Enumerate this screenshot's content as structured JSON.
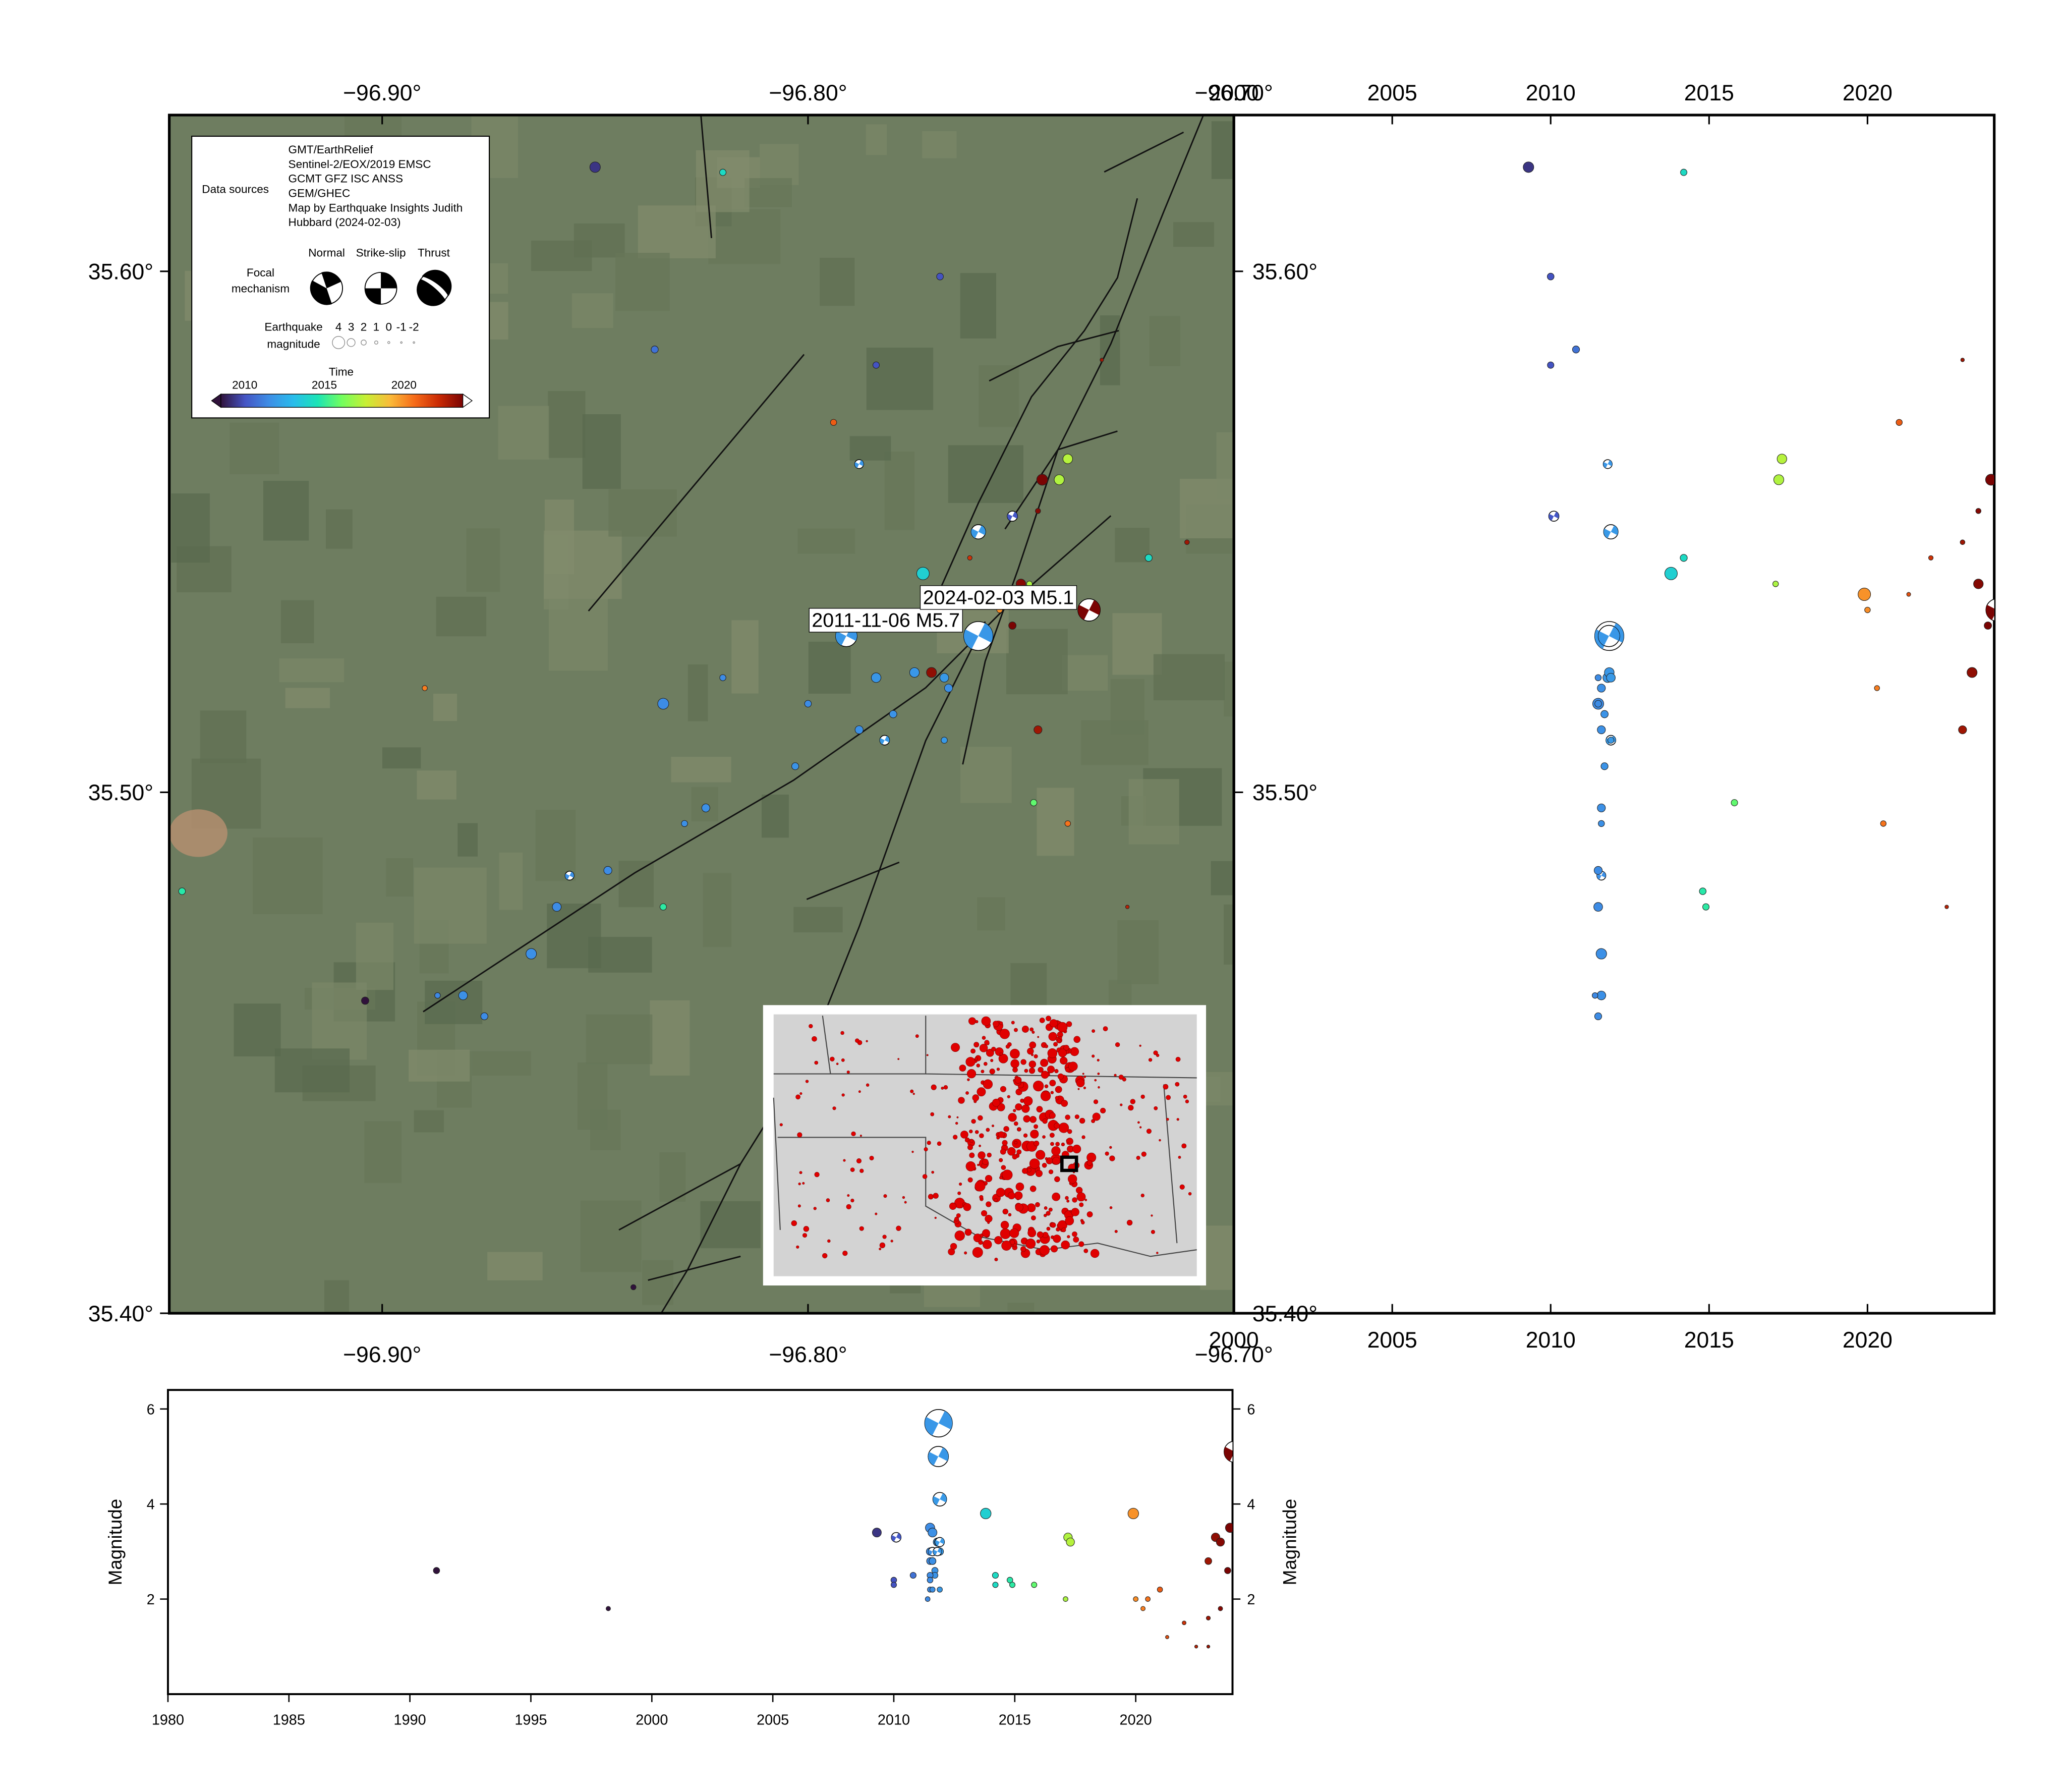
{
  "map": {
    "xlim": [
      -96.95,
      -96.7
    ],
    "ylim": [
      35.4,
      35.63
    ],
    "xticks": [
      {
        "value": -96.9,
        "label": "−96.90°"
      },
      {
        "value": -96.8,
        "label": "−96.80°"
      },
      {
        "value": -96.7,
        "label": "−96.70°"
      }
    ],
    "yticks": [
      {
        "value": 35.6,
        "label": "35.60°"
      },
      {
        "value": 35.5,
        "label": "35.50°"
      },
      {
        "value": 35.4,
        "label": "35.40°"
      }
    ]
  },
  "time_panel": {
    "xlim": [
      2000,
      2024
    ],
    "xticks": [
      2000,
      2005,
      2010,
      2015,
      2020
    ]
  },
  "magnitude_panel": {
    "xlim": [
      1980,
      2024
    ],
    "ylim": [
      0,
      6.4
    ],
    "xticks": [
      1980,
      1985,
      1990,
      1995,
      2000,
      2005,
      2010,
      2015,
      2020
    ],
    "yticks": [
      2,
      4,
      6
    ],
    "ylabel": "Magnitude"
  },
  "legend": {
    "data_sources_label": "Data sources",
    "sources": [
      "GMT/EarthRelief",
      "Sentinel-2/EOX/2019 EMSC",
      "GCMT GFZ ISC ANSS",
      "GEM/GHEC",
      "Map by Earthquake Insights Judith",
      "Hubbard (2024-02-03)"
    ],
    "focal_mechanism_label": [
      "Focal",
      "mechanism"
    ],
    "mechanisms": [
      "Normal",
      "Strike-slip",
      "Thrust"
    ],
    "magnitude_label": [
      "Earthquake",
      "magnitude"
    ],
    "magnitudes": [
      4,
      3,
      2,
      1,
      0,
      -1,
      -2
    ],
    "time_label": "Time",
    "time_ticks": [
      2010,
      2015,
      2020
    ]
  },
  "colormap": [
    "#30123b",
    "#4454c4",
    "#3d8ee6",
    "#28bceb",
    "#1ae4b6",
    "#72fe5e",
    "#c8ef34",
    "#faba39",
    "#f66b19",
    "#ca2a04",
    "#7a0403"
  ],
  "cpt_range": [
    2008.5,
    2023.7
  ],
  "events": {
    "lon": [
      -96.76,
      -96.791,
      -96.734,
      -96.76,
      -96.85,
      -96.773,
      -96.834,
      -96.865,
      -96.881,
      -96.859,
      -96.847,
      -96.824,
      -96.803,
      -96.784,
      -96.768,
      -96.775,
      -96.771,
      -96.746,
      -96.72,
      -96.739,
      -96.794,
      -96.784,
      -96.769,
      -96.836,
      -96.856,
      -96.782,
      -96.788,
      -96.752,
      -96.947,
      -96.834,
      -96.747,
      -96.739,
      -96.89,
      -96.711,
      -96.746,
      -96.748,
      -96.755,
      -96.767,
      -96.78,
      -96.788,
      -96.8,
      -96.82,
      -96.829,
      -96.876,
      -96.887,
      -96.768,
      -96.731,
      -96.725,
      -96.904,
      -96.841,
      -96.741,
      -96.82,
      -96.755,
      -96.745,
      -96.75,
      -96.762,
      -96.758,
      -96.752
    ],
    "lat": [
      35.53,
      35.53,
      35.535,
      35.55,
      35.62,
      35.542,
      35.517,
      35.469,
      35.461,
      35.478,
      35.485,
      35.497,
      35.505,
      35.522,
      35.522,
      35.523,
      35.523,
      35.512,
      35.545,
      35.564,
      35.571,
      35.582,
      35.599,
      35.585,
      35.484,
      35.51,
      35.563,
      35.553,
      35.481,
      35.478,
      35.498,
      35.494,
      35.52,
      35.548,
      35.554,
      35.54,
      35.535,
      35.52,
      35.515,
      35.512,
      35.517,
      35.522,
      35.494,
      35.457,
      35.461,
      35.51,
      35.583,
      35.478,
      35.46,
      35.405,
      35.56,
      35.619,
      35.538,
      35.56,
      35.54,
      35.545,
      35.538,
      35.532
    ],
    "time": [
      2011.85,
      2011.84,
      2024.09,
      2011.9,
      2009.3,
      2013.8,
      2011.5,
      2011.6,
      2011.6,
      2011.5,
      2011.5,
      2011.6,
      2011.7,
      2011.8,
      2011.9,
      2011.85,
      2023.3,
      2023.0,
      2014.2,
      2017.3,
      2021.0,
      2010.0,
      2010.0,
      2010.8,
      2011.6,
      2011.9,
      2011.8,
      2010.1,
      2014.8,
      2014.9,
      2015.8,
      2020.5,
      2020.3,
      2023.0,
      2023.5,
      2017.1,
      2020.0,
      2011.6,
      2011.7,
      2011.6,
      2011.5,
      2011.5,
      2011.6,
      2011.5,
      2011.4,
      2011.9,
      2023.0,
      2022.5,
      1991.1,
      1998.2,
      2017.2,
      2014.2,
      2019.9,
      2023.9,
      2023.5,
      2022.0,
      2021.3,
      2023.8
    ],
    "mag": [
      5.7,
      5.0,
      5.1,
      4.1,
      3.4,
      3.8,
      3.5,
      3.4,
      3.0,
      3.0,
      2.8,
      2.8,
      2.5,
      3.2,
      3.0,
      3.2,
      3.3,
      2.8,
      2.5,
      3.2,
      2.2,
      2.3,
      2.4,
      2.5,
      3.0,
      3.2,
      3.0,
      3.3,
      2.4,
      2.3,
      2.3,
      2.0,
      1.8,
      1.6,
      1.8,
      2.0,
      2.0,
      2.8,
      2.6,
      2.8,
      2.4,
      2.2,
      2.2,
      2.5,
      2.0,
      2.2,
      1.0,
      1.0,
      2.6,
      1.8,
      3.3,
      2.3,
      3.8,
      3.5,
      3.2,
      1.5,
      1.2,
      2.6
    ],
    "mechanism": [
      "strike-slip",
      "strike-slip",
      "strike-slip",
      "strike-slip",
      null,
      null,
      null,
      null,
      null,
      null,
      null,
      null,
      null,
      null,
      null,
      null,
      null,
      null,
      null,
      null,
      null,
      null,
      null,
      null,
      "strike-slip",
      "strike-slip",
      "strike-slip",
      "strike-slip",
      null,
      null,
      null,
      null,
      null,
      null,
      null,
      null,
      null,
      null,
      null,
      null,
      null,
      null,
      null,
      null,
      null,
      null,
      null,
      null,
      null,
      null,
      null,
      null,
      null,
      null,
      null,
      null,
      null,
      null
    ],
    "label": [
      "2011-11-06 M5.7",
      null,
      "2024-02-03 M5.1",
      null,
      null,
      null,
      null,
      null,
      null,
      null,
      null,
      null,
      null,
      null,
      null,
      null,
      null,
      null,
      null,
      null,
      null,
      null,
      null,
      null,
      null,
      null,
      null,
      null,
      null,
      null,
      null,
      null,
      null,
      null,
      null,
      null,
      null,
      null,
      null,
      null,
      null,
      null,
      null,
      null,
      null,
      null,
      null,
      null,
      null,
      null,
      null,
      null,
      null,
      null,
      null,
      null,
      null,
      null
    ]
  }
}
